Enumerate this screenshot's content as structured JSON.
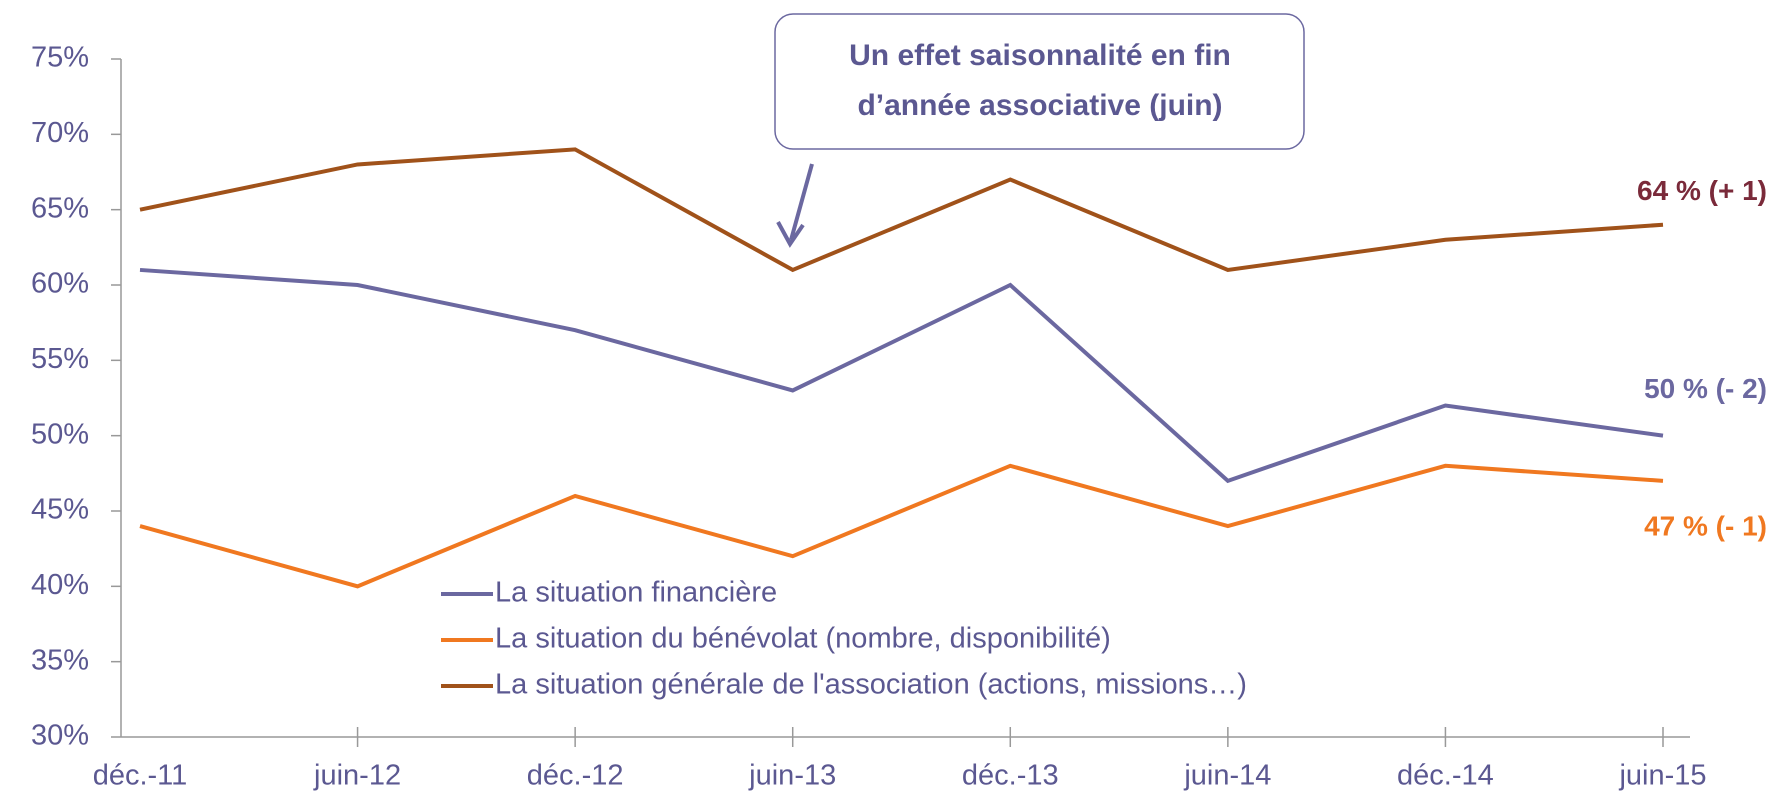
{
  "chart_data": {
    "type": "line",
    "categories": [
      "déc.-11",
      "juin-12",
      "déc.-12",
      "juin-13",
      "déc.-13",
      "juin-14",
      "déc.-14",
      "juin-15"
    ],
    "series": [
      {
        "name": "La situation financière",
        "color": "#6b68a0",
        "values": [
          61,
          60,
          57,
          53,
          60,
          47,
          52,
          50
        ],
        "end_label": "50 % (- 2)",
        "label_color": "#6b68a0"
      },
      {
        "name": "La situation du bénévolat (nombre, disponibilité)",
        "color": "#f07820",
        "values": [
          44,
          40,
          46,
          42,
          48,
          44,
          48,
          47
        ],
        "end_label": "47 % (- 1)",
        "label_color": "#f07820"
      },
      {
        "name": "La situation générale de l'association (actions, missions…)",
        "color": "#a0521a",
        "values": [
          65,
          68,
          69,
          61,
          67,
          61,
          63,
          64
        ],
        "end_label": "64 % (+ 1)",
        "label_color": "#7a2a3a"
      }
    ],
    "ylim": [
      30,
      75
    ],
    "yticks": [
      {
        "value": 30,
        "label": "30%"
      },
      {
        "value": 35,
        "label": "35%"
      },
      {
        "value": 40,
        "label": "40%"
      },
      {
        "value": 45,
        "label": "45%"
      },
      {
        "value": 50,
        "label": "50%"
      },
      {
        "value": 55,
        "label": "55%"
      },
      {
        "value": 60,
        "label": "60%"
      },
      {
        "value": 65,
        "label": "65%"
      },
      {
        "value": 70,
        "label": "70%"
      },
      {
        "value": 75,
        "label": "75%"
      }
    ],
    "annotation": [
      "Un effet saisonnalité en fin",
      "d’année associative (juin)"
    ]
  }
}
